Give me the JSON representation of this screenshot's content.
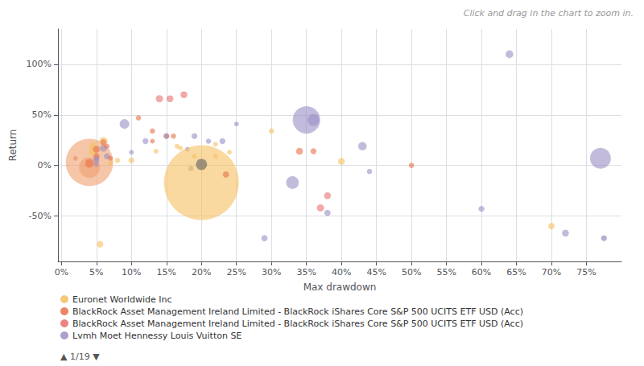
{
  "chart_data": {
    "type": "scatter",
    "subtitle": "Click and drag in the chart to zoom in.",
    "xlabel": "Max drawdown",
    "ylabel": "Return",
    "x": [
      0.02,
      0.04,
      0.04,
      0.04,
      0.045,
      0.045,
      0.05,
      0.05,
      0.05,
      0.05,
      0.05,
      0.055,
      0.06,
      0.06,
      0.06,
      0.065,
      0.065,
      0.07,
      0.07,
      0.08,
      0.09,
      0.1,
      0.1,
      0.11,
      0.12,
      0.13,
      0.13,
      0.135,
      0.14,
      0.15,
      0.15,
      0.155,
      0.16,
      0.165,
      0.17,
      0.175,
      0.18,
      0.185,
      0.19,
      0.19,
      0.2,
      0.2,
      0.21,
      0.22,
      0.22,
      0.23,
      0.235,
      0.24,
      0.25,
      0.29,
      0.3,
      0.33,
      0.34,
      0.35,
      0.36,
      0.36,
      0.37,
      0.38,
      0.38,
      0.4,
      0.43,
      0.44,
      0.5,
      0.6,
      0.64,
      0.7,
      0.72,
      0.77,
      0.775
    ],
    "values": [
      0.07,
      0.03,
      -0.02,
      0.02,
      0.13,
      0.19,
      0.05,
      0.01,
      0.09,
      0.16,
      0.07,
      -0.78,
      0.24,
      0.17,
      0.23,
      0.19,
      0.09,
      0.02,
      0.07,
      0.05,
      0.41,
      0.13,
      0.05,
      0.47,
      0.24,
      0.34,
      0.24,
      0.14,
      0.66,
      0.29,
      0.29,
      0.66,
      0.29,
      0.19,
      0.17,
      0.7,
      0.16,
      -0.03,
      0.29,
      0.09,
      -0.17,
      0.01,
      0.24,
      0.21,
      0.09,
      0.24,
      -0.09,
      0.13,
      0.41,
      -0.72,
      0.34,
      -0.17,
      0.14,
      0.45,
      0.45,
      0.14,
      -0.42,
      -0.3,
      -0.47,
      0.04,
      0.19,
      -0.06,
      0,
      -0.43,
      1.1,
      -0.6,
      -0.67,
      0.07,
      -0.72
    ],
    "sizes": [
      18,
      1800,
      350,
      60,
      55,
      45,
      28,
      18,
      32,
      38,
      22,
      35,
      55,
      38,
      28,
      22,
      28,
      18,
      18,
      22,
      75,
      18,
      28,
      22,
      28,
      22,
      18,
      18,
      42,
      28,
      22,
      38,
      22,
      18,
      18,
      38,
      18,
      22,
      28,
      18,
      4500,
      100,
      22,
      18,
      18,
      28,
      32,
      18,
      18,
      32,
      22,
      130,
      38,
      600,
      110,
      28,
      42,
      38,
      32,
      38,
      58,
      22,
      22,
      28,
      48,
      32,
      38,
      350,
      28
    ],
    "colors": [
      "#e8704a",
      "#f0a070",
      "#f0a070",
      "#e8704a",
      "#f5c060",
      "#f5c060",
      "#9b8ec4",
      "#9b8ec4",
      "#e8704a",
      "#e8704a",
      "#9b8ec4",
      "#f5c060",
      "#f5c060",
      "#9b8ec4",
      "#e8704a",
      "#e8704a",
      "#9b8ec4",
      "#f5c060",
      "#e8704a",
      "#f5c060",
      "#9b8ec4",
      "#9b8ec4",
      "#f5c060",
      "#e8704a",
      "#9b8ec4",
      "#e8704a",
      "#e8704a",
      "#f5c060",
      "#e87070",
      "#e8704a",
      "#9b8ec4",
      "#e87070",
      "#e8704a",
      "#f5c060",
      "#f5c060",
      "#e87070",
      "#9b8ec4",
      "#9b8ec4",
      "#9b8ec4",
      "#f5c060",
      "#f5c060",
      "#606060",
      "#9b8ec4",
      "#f5c060",
      "#f5c060",
      "#9b8ec4",
      "#e8704a",
      "#f5c060",
      "#9b8ec4",
      "#9b8ec4",
      "#f5c060",
      "#9b8ec4",
      "#e8704a",
      "#9b8ec4",
      "#9b8ec4",
      "#e8704a",
      "#e87070",
      "#e87070",
      "#9b8ec4",
      "#f5c060",
      "#9b8ec4",
      "#9b8ec4",
      "#e8704a",
      "#9b8ec4",
      "#9b8ec4",
      "#f5c060",
      "#9b8ec4",
      "#9b8ec4",
      "#8878b8"
    ],
    "xlim": [
      -0.005,
      0.8
    ],
    "ylim": [
      -0.95,
      1.35
    ],
    "xticks": [
      {
        "value": 0,
        "label": "0%"
      },
      {
        "value": 0.05,
        "label": "5%"
      },
      {
        "value": 0.1,
        "label": "10%"
      },
      {
        "value": 0.15,
        "label": "15%"
      },
      {
        "value": 0.2,
        "label": "20%"
      },
      {
        "value": 0.25,
        "label": "25%"
      },
      {
        "value": 0.3,
        "label": "30%"
      },
      {
        "value": 0.35,
        "label": "35%"
      },
      {
        "value": 0.4,
        "label": "40%"
      },
      {
        "value": 0.45,
        "label": "45%"
      },
      {
        "value": 0.5,
        "label": "50%"
      },
      {
        "value": 0.55,
        "label": "55%"
      },
      {
        "value": 0.6,
        "label": "60%"
      },
      {
        "value": 0.65,
        "label": "65%"
      },
      {
        "value": 0.7,
        "label": "70%"
      },
      {
        "value": 0.75,
        "label": "75%"
      }
    ],
    "yticks": [
      {
        "value": -0.5,
        "label": "-50%"
      },
      {
        "value": 0,
        "label": "0%"
      },
      {
        "value": 0.5,
        "label": "50%"
      },
      {
        "value": 1.0,
        "label": "100%"
      }
    ],
    "grid": true,
    "legend": "bottom left",
    "legend_items": [
      {
        "label": "Euronet Worldwide Inc",
        "color": "#f5c060",
        "marker": "circle"
      },
      {
        "label": "BlackRock Asset Management Ireland Limited - BlackRock iShares Core S&P 500 UCITS ETF USD (Acc)",
        "color": "#e8704a",
        "marker": "circle"
      },
      {
        "label": "BlackRock Asset Management Ireland Limited - BlackRock iShares Core S&P 500 UCITS ETF USD (Acc)",
        "color": "#e87070",
        "marker": "circle"
      },
      {
        "label": "Lvmh Moet Hennessy Louis Vuitton SE",
        "color": "#9b8ec4",
        "marker": "circle"
      }
    ],
    "annotations": [
      "▲",
      "1/19",
      "▼"
    ]
  }
}
